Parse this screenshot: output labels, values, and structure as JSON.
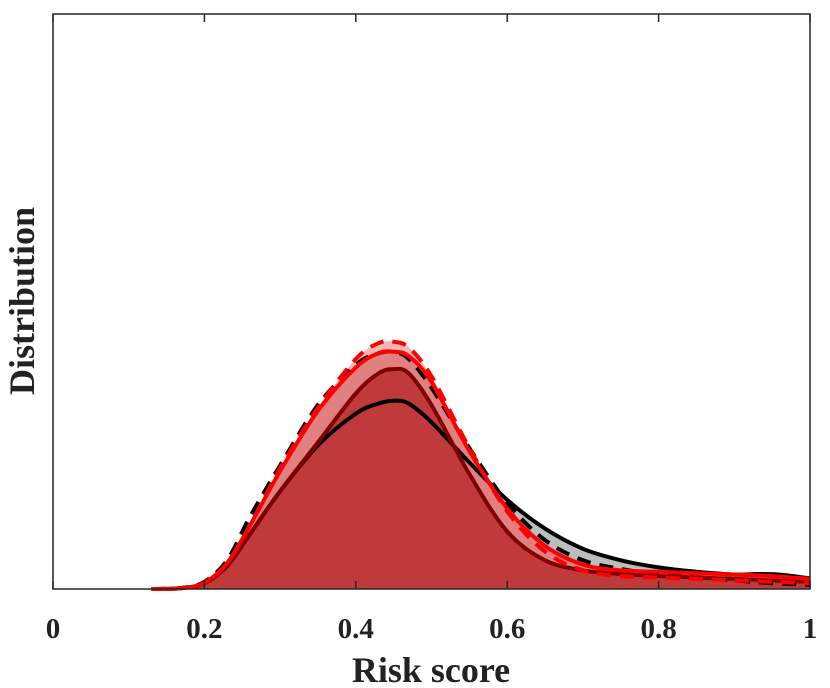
{
  "chart_data": {
    "type": "area",
    "title": "",
    "xlabel": "Risk score",
    "ylabel": "Distribution",
    "xlim": [
      0,
      1
    ],
    "ylim": [
      0,
      1
    ],
    "xticks": [
      "0",
      "0.2",
      "0.4",
      "0.6",
      "0.8",
      "1"
    ],
    "grid": false,
    "legend": "none",
    "series": [
      {
        "style": "black-solid",
        "line_color": "#000000",
        "fill_color": "#bdbdbd",
        "x": [
          0.13,
          0.17,
          0.2,
          0.23,
          0.26,
          0.3,
          0.35,
          0.4,
          0.43,
          0.45,
          0.47,
          0.5,
          0.55,
          0.6,
          0.65,
          0.7,
          0.75,
          0.8,
          0.85,
          0.9,
          0.93,
          0.96,
          1.0
        ],
        "y": [
          0,
          0.003,
          0.02,
          0.08,
          0.19,
          0.34,
          0.5,
          0.61,
          0.645,
          0.655,
          0.645,
          0.58,
          0.44,
          0.31,
          0.21,
          0.14,
          0.1,
          0.075,
          0.06,
          0.05,
          0.052,
          0.05,
          0.037
        ]
      },
      {
        "style": "dark-red-solid",
        "line_color": "#800000",
        "fill_color": "#c0393b",
        "x": [
          0.13,
          0.17,
          0.2,
          0.23,
          0.26,
          0.3,
          0.35,
          0.4,
          0.43,
          0.45,
          0.47,
          0.5,
          0.55,
          0.6,
          0.65,
          0.7,
          0.75,
          0.8,
          0.85,
          0.9,
          0.95,
          1.0
        ],
        "y": [
          0,
          0.003,
          0.02,
          0.08,
          0.19,
          0.34,
          0.51,
          0.68,
          0.75,
          0.765,
          0.75,
          0.64,
          0.4,
          0.2,
          0.1,
          0.065,
          0.052,
          0.045,
          0.04,
          0.035,
          0.03,
          0.025
        ]
      },
      {
        "style": "black-dashed",
        "line_color": "#000000",
        "fill_color": "none",
        "x": [
          0.13,
          0.17,
          0.2,
          0.23,
          0.26,
          0.3,
          0.35,
          0.4,
          0.43,
          0.45,
          0.47,
          0.5,
          0.55,
          0.6,
          0.65,
          0.7,
          0.75,
          0.8,
          0.85,
          0.9,
          0.95,
          1.0
        ],
        "y": [
          0,
          0.004,
          0.025,
          0.1,
          0.25,
          0.43,
          0.64,
          0.78,
          0.82,
          0.825,
          0.8,
          0.7,
          0.49,
          0.3,
          0.17,
          0.1,
          0.07,
          0.05,
          0.04,
          0.03,
          0.02,
          0.015
        ]
      },
      {
        "style": "red-solid",
        "line_color": "#ff0000",
        "fill_color": "#e08080",
        "x": [
          0.13,
          0.17,
          0.2,
          0.23,
          0.26,
          0.3,
          0.35,
          0.4,
          0.43,
          0.45,
          0.47,
          0.5,
          0.55,
          0.6,
          0.65,
          0.7,
          0.75,
          0.8,
          0.85,
          0.9,
          0.95,
          1.0
        ],
        "y": [
          0,
          0.003,
          0.022,
          0.09,
          0.22,
          0.41,
          0.62,
          0.77,
          0.82,
          0.825,
          0.81,
          0.72,
          0.48,
          0.28,
          0.15,
          0.085,
          0.065,
          0.06,
          0.055,
          0.05,
          0.045,
          0.035
        ]
      },
      {
        "style": "red-dashed",
        "line_color": "#ff0000",
        "fill_color": "#f2b8b8",
        "x": [
          0.13,
          0.17,
          0.2,
          0.23,
          0.26,
          0.3,
          0.35,
          0.4,
          0.43,
          0.45,
          0.47,
          0.5,
          0.55,
          0.6,
          0.65,
          0.7,
          0.75,
          0.8,
          0.85,
          0.9,
          0.95,
          1.0
        ],
        "y": [
          0,
          0.003,
          0.022,
          0.09,
          0.22,
          0.42,
          0.63,
          0.8,
          0.855,
          0.86,
          0.84,
          0.74,
          0.49,
          0.27,
          0.13,
          0.065,
          0.045,
          0.04,
          0.035,
          0.03,
          0.025,
          0.02
        ]
      }
    ]
  }
}
